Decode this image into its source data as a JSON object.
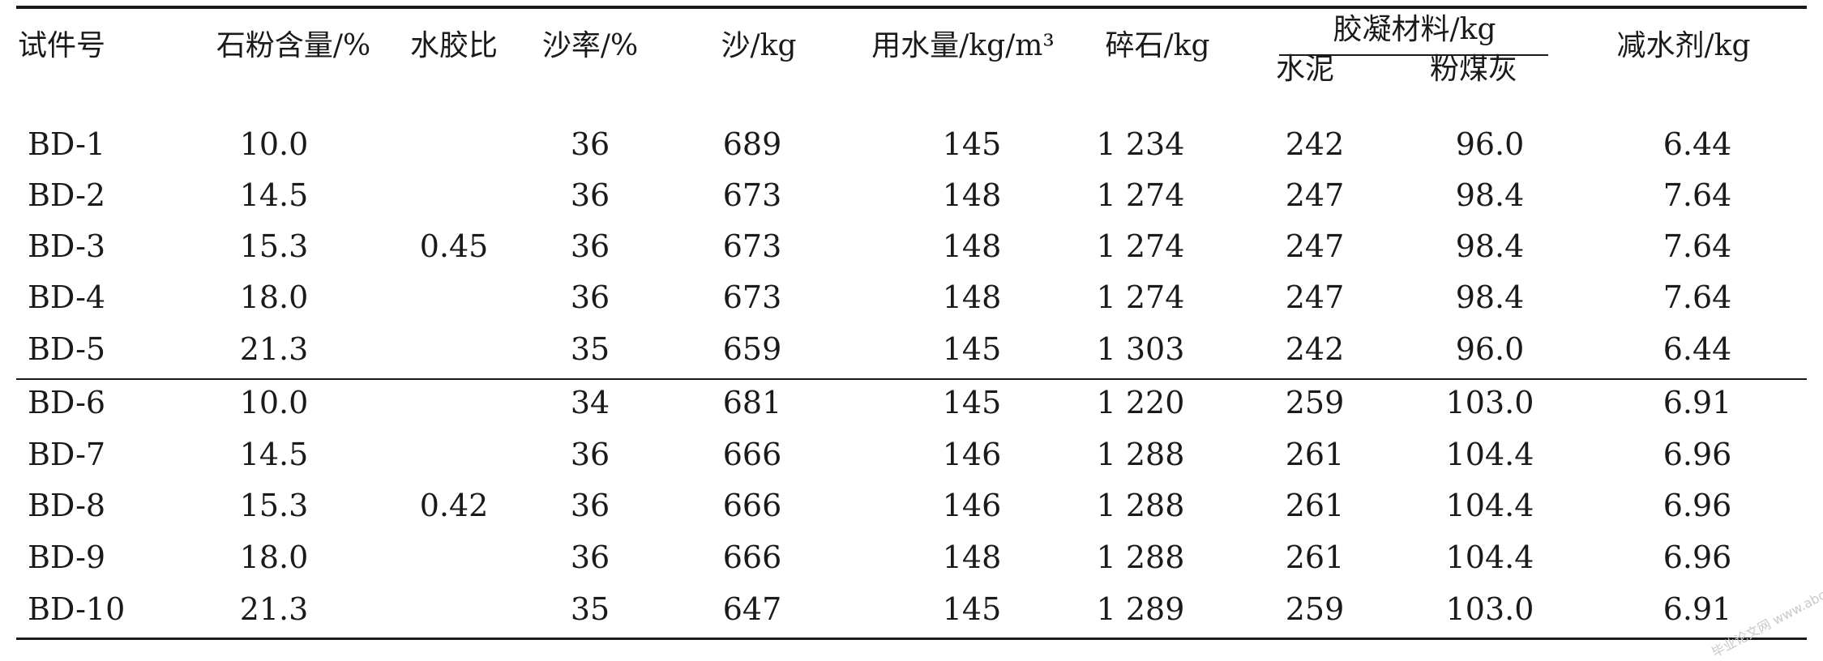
{
  "table": {
    "group_header": "胶凝材料/kg",
    "columns": {
      "specimen": "试件号",
      "stone_powder": "石粉含量/%",
      "wb_ratio": "水胶比",
      "sand_ratio": "沙率/%",
      "sand": "沙/kg",
      "water": "用水量/kg/m³",
      "gravel": "碎石/kg",
      "cement": "水泥",
      "flyash": "粉煤灰",
      "reducer": "减水剂/kg"
    },
    "group_ratios": [
      "0.45",
      "0.42"
    ],
    "rows": [
      [
        "BD-1",
        "10.0",
        "36",
        "689",
        "145",
        "1 234",
        "242",
        "96.0",
        "6.44"
      ],
      [
        "BD-2",
        "14.5",
        "36",
        "673",
        "148",
        "1 274",
        "247",
        "98.4",
        "7.64"
      ],
      [
        "BD-3",
        "15.3",
        "36",
        "673",
        "148",
        "1 274",
        "247",
        "98.4",
        "7.64"
      ],
      [
        "BD-4",
        "18.0",
        "36",
        "673",
        "148",
        "1 274",
        "247",
        "98.4",
        "7.64"
      ],
      [
        "BD-5",
        "21.3",
        "35",
        "659",
        "145",
        "1 303",
        "242",
        "96.0",
        "6.44"
      ],
      [
        "BD-6",
        "10.0",
        "34",
        "681",
        "145",
        "1 220",
        "259",
        "103.0",
        "6.91"
      ],
      [
        "BD-7",
        "14.5",
        "36",
        "666",
        "146",
        "1 288",
        "261",
        "104.4",
        "6.96"
      ],
      [
        "BD-8",
        "15.3",
        "36",
        "666",
        "146",
        "1 288",
        "261",
        "104.4",
        "6.96"
      ],
      [
        "BD-9",
        "18.0",
        "36",
        "666",
        "148",
        "1 288",
        "261",
        "104.4",
        "6.96"
      ],
      [
        "BD-10",
        "21.3",
        "35",
        "647",
        "145",
        "1 289",
        "259",
        "103.0",
        "6.91"
      ]
    ]
  },
  "watermark": "毕业论文网 www.abcd.com"
}
